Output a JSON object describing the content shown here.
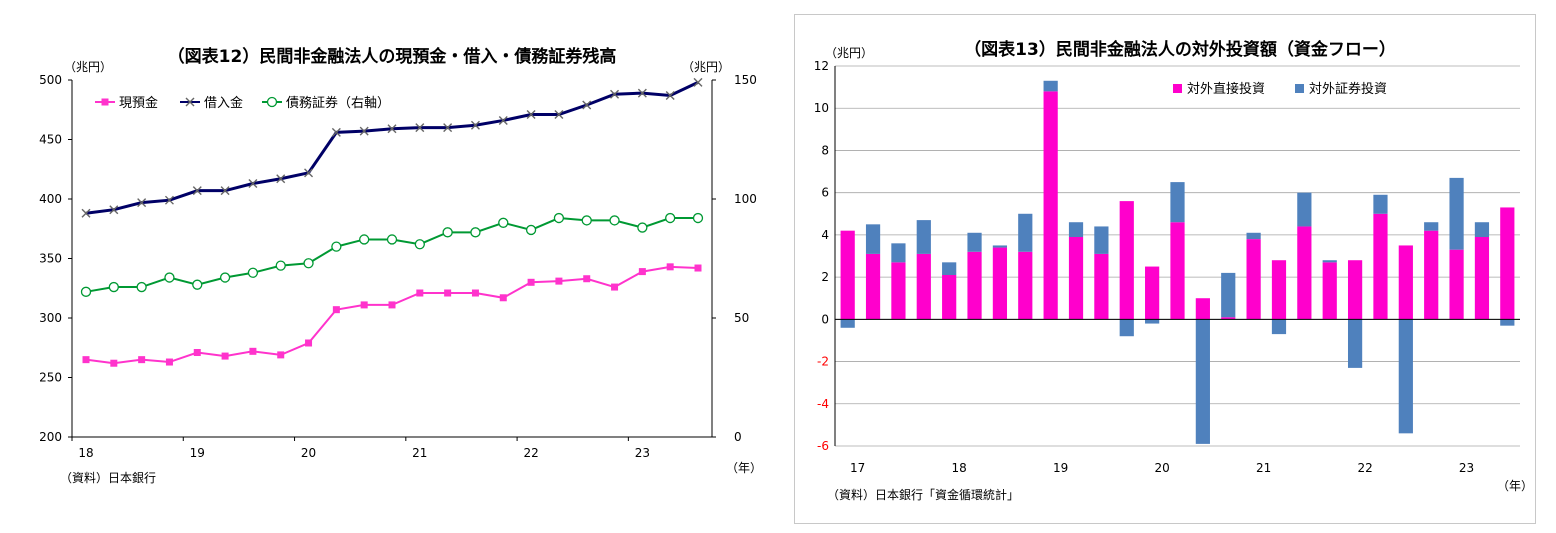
{
  "chart_data": [
    {
      "type": "line",
      "title": "（図表12）民間非金融法人の現預金・借入・債務証券残高",
      "unit_left": "（兆円）",
      "unit_right": "（兆円）",
      "xlabel": "（年）",
      "source": "（資料）日本銀行",
      "x_ticks": [
        "18",
        "19",
        "20",
        "21",
        "22",
        "23"
      ],
      "ylim_left": [
        200,
        500
      ],
      "yticks_left": [
        200,
        250,
        300,
        350,
        400,
        450,
        500
      ],
      "ylim_right": [
        0,
        150
      ],
      "yticks_right": [
        0,
        50,
        100,
        150
      ],
      "grid": false,
      "legend_position": "top-left",
      "series": [
        {
          "name": "現預金",
          "axis": "left",
          "color": "#ff33cc",
          "marker": "square",
          "values": [
            265,
            262,
            265,
            263,
            271,
            268,
            272,
            269,
            279,
            307,
            311,
            311,
            321,
            321,
            321,
            317,
            330,
            331,
            333,
            326,
            339,
            343,
            342
          ]
        },
        {
          "name": "借入金",
          "axis": "left",
          "color": "#000066",
          "marker": "x",
          "values": [
            388,
            391,
            397,
            399,
            407,
            407,
            413,
            417,
            422,
            456,
            457,
            459,
            460,
            460,
            462,
            466,
            471,
            471,
            479,
            488,
            489,
            487,
            498
          ]
        },
        {
          "name": "債務証券（右軸）",
          "axis": "right",
          "color": "#009933",
          "marker": "circle",
          "values": [
            61,
            63,
            63,
            67,
            64,
            67,
            69,
            72,
            73,
            80,
            83,
            83,
            81,
            86,
            86,
            90,
            87,
            92,
            91,
            91,
            88,
            92,
            92
          ]
        }
      ]
    },
    {
      "type": "bar",
      "stacked": true,
      "title": "（図表13）民間非金融法人の対外投資額（資金フロー）",
      "unit": "（兆円）",
      "xlabel": "（年）",
      "source": "（資料）日本銀行「資金循環統計」",
      "x_ticks": [
        "17",
        "18",
        "19",
        "20",
        "21",
        "22",
        "23"
      ],
      "ylim": [
        -6,
        12
      ],
      "yticks": [
        -6,
        -4,
        -2,
        0,
        2,
        4,
        6,
        8,
        10,
        12
      ],
      "grid": true,
      "legend_position": "top-right",
      "series": [
        {
          "name": "対外直接投資",
          "color": "#ff00cc",
          "values": [
            4.2,
            3.1,
            2.7,
            3.1,
            2.1,
            3.2,
            3.4,
            3.2,
            10.8,
            3.9,
            3.1,
            5.6,
            2.5,
            4.6,
            1.0,
            0.1,
            3.8,
            2.8,
            4.4,
            2.7,
            2.8,
            5.0,
            3.5,
            4.2,
            3.3,
            3.9,
            5.3
          ]
        },
        {
          "name": "対外証券投資",
          "color": "#4f81bd",
          "values": [
            -0.4,
            1.4,
            0.9,
            1.6,
            0.6,
            0.9,
            0.1,
            1.8,
            0.5,
            0.7,
            1.3,
            -0.8,
            -0.2,
            1.9,
            -5.9,
            2.1,
            0.3,
            -0.7,
            1.6,
            0.1,
            -2.3,
            0.9,
            -5.4,
            0.4,
            3.4,
            0.7,
            -0.3
          ]
        }
      ]
    }
  ]
}
